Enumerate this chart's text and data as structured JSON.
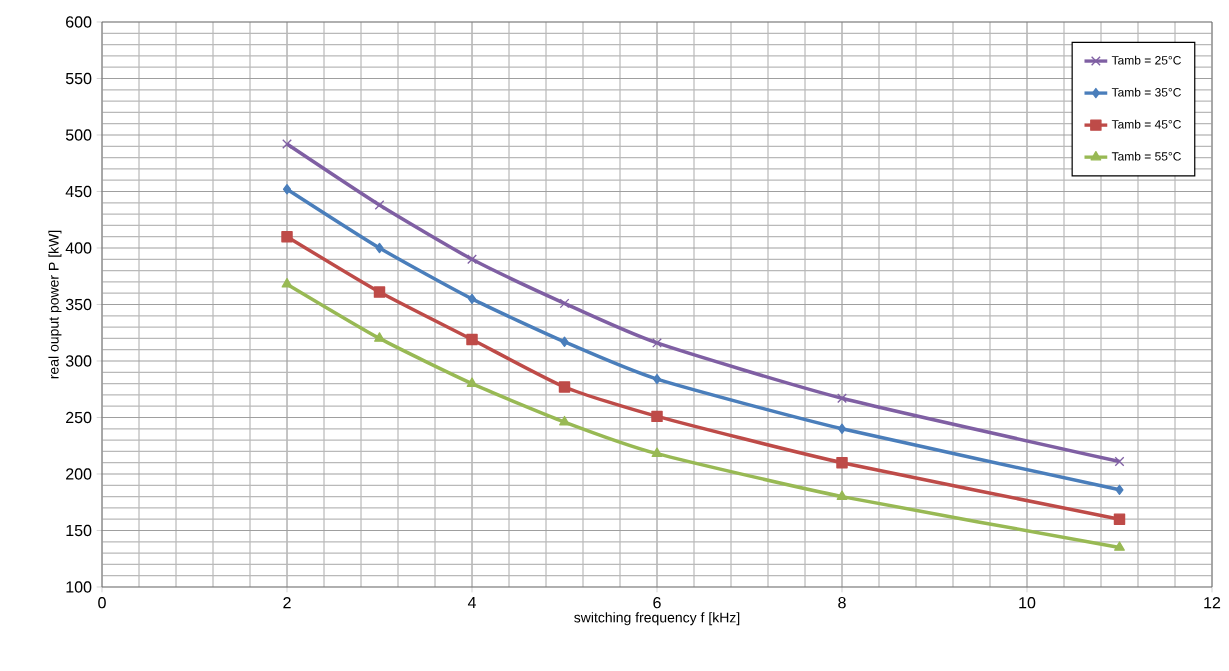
{
  "chart_data": {
    "type": "line",
    "xlabel": "switching frequency f [kHz]",
    "ylabel": "real ouput power P [kW]",
    "x": [
      2,
      3,
      4,
      5,
      6,
      8,
      11
    ],
    "series": [
      {
        "name": "Tamb = 25°C",
        "color": "#7f5fa3",
        "marker": "cross",
        "values": [
          492,
          438,
          390,
          351,
          316,
          267,
          211
        ]
      },
      {
        "name": "Tamb = 35°C",
        "color": "#4a7ebb",
        "marker": "diamond",
        "values": [
          452,
          400,
          355,
          317,
          284,
          240,
          186
        ]
      },
      {
        "name": "Tamb = 45°C",
        "color": "#be4b48",
        "marker": "square",
        "values": [
          410,
          361,
          319,
          277,
          251,
          210,
          160
        ]
      },
      {
        "name": "Tamb = 55°C",
        "color": "#98b954",
        "marker": "triangle",
        "values": [
          368,
          320,
          280,
          246,
          218,
          180,
          135
        ]
      }
    ],
    "xlim": [
      0,
      12
    ],
    "xticks": [
      0,
      2,
      4,
      6,
      8,
      10,
      12
    ],
    "ylim": [
      100,
      600
    ],
    "yticks": [
      100,
      150,
      200,
      250,
      300,
      350,
      400,
      450,
      500,
      550,
      600
    ],
    "grid": true,
    "legend": "top right",
    "line_style": "solid"
  }
}
